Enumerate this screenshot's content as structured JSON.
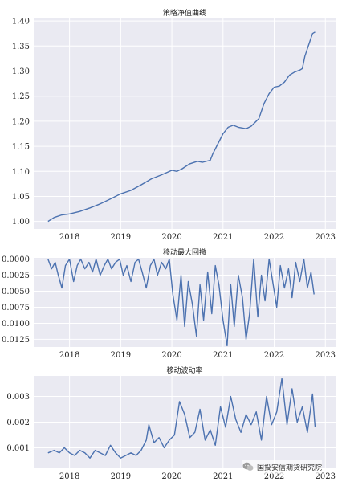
{
  "chart_data": [
    {
      "type": "line",
      "title": "策略净值曲线",
      "xlabel": "",
      "ylabel": "",
      "x_ticks": [
        "2018",
        "2019",
        "2020",
        "2021",
        "2022",
        "2023"
      ],
      "xlim": [
        2017.3,
        2023.2
      ],
      "y_ticks": [
        "1.00",
        "1.05",
        "1.10",
        "1.15",
        "1.20",
        "1.25",
        "1.30",
        "1.35",
        "1.40"
      ],
      "ylim": [
        0.985,
        1.405
      ],
      "grid": true,
      "series": [
        {
          "x": [
            2017.58,
            2017.7,
            2017.85,
            2018.0,
            2018.2,
            2018.4,
            2018.6,
            2018.8,
            2019.0,
            2019.2,
            2019.4,
            2019.6,
            2019.8,
            2020.0,
            2020.1,
            2020.2,
            2020.35,
            2020.5,
            2020.6,
            2020.75,
            2020.8,
            2020.9,
            2021.0,
            2021.1,
            2021.2,
            2021.3,
            2021.45,
            2021.55,
            2021.7,
            2021.8,
            2021.9,
            2022.0,
            2022.1,
            2022.2,
            2022.3,
            2022.4,
            2022.5,
            2022.55,
            2022.6,
            2022.7,
            2022.75,
            2022.8
          ],
          "values": [
            1.0,
            1.008,
            1.013,
            1.015,
            1.02,
            1.027,
            1.035,
            1.045,
            1.055,
            1.062,
            1.073,
            1.085,
            1.093,
            1.102,
            1.1,
            1.105,
            1.115,
            1.12,
            1.118,
            1.122,
            1.135,
            1.155,
            1.175,
            1.188,
            1.192,
            1.188,
            1.185,
            1.19,
            1.205,
            1.235,
            1.255,
            1.268,
            1.27,
            1.278,
            1.292,
            1.298,
            1.302,
            1.305,
            1.33,
            1.36,
            1.375,
            1.378
          ]
        }
      ]
    },
    {
      "type": "line",
      "title": "移动最大回撤",
      "xlabel": "",
      "ylabel": "",
      "x_ticks": [
        "2018",
        "2019",
        "2020",
        "2021",
        "2022",
        "2023"
      ],
      "xlim": [
        2017.3,
        2023.2
      ],
      "y_ticks": [
        "0.0000",
        "0.0025",
        "0.0050",
        "0.0075",
        "0.0100",
        "0.0125"
      ],
      "ylim": [
        0.0137,
        -0.0002
      ],
      "grid": true,
      "series": [
        {
          "x": [
            2017.58,
            2017.65,
            2017.72,
            2017.78,
            2017.85,
            2017.92,
            2018.0,
            2018.08,
            2018.15,
            2018.22,
            2018.3,
            2018.38,
            2018.45,
            2018.52,
            2018.6,
            2018.68,
            2018.75,
            2018.82,
            2018.9,
            2018.98,
            2019.05,
            2019.12,
            2019.2,
            2019.28,
            2019.35,
            2019.42,
            2019.5,
            2019.58,
            2019.65,
            2019.72,
            2019.8,
            2019.88,
            2019.95,
            2020.02,
            2020.1,
            2020.18,
            2020.25,
            2020.32,
            2020.4,
            2020.48,
            2020.55,
            2020.62,
            2020.7,
            2020.78,
            2020.85,
            2020.92,
            2021.0,
            2021.08,
            2021.15,
            2021.22,
            2021.3,
            2021.38,
            2021.45,
            2021.52,
            2021.6,
            2021.68,
            2021.75,
            2021.82,
            2021.9,
            2021.98,
            2022.05,
            2022.12,
            2022.2,
            2022.28,
            2022.35,
            2022.42,
            2022.5,
            2022.58,
            2022.65,
            2022.72,
            2022.78
          ],
          "values": [
            0.0,
            0.0015,
            0.0005,
            0.0025,
            0.0045,
            0.001,
            0.0,
            0.0035,
            0.001,
            0.0,
            0.0015,
            0.0005,
            0.002,
            0.0,
            0.0025,
            0.001,
            0.0,
            0.0015,
            0.0005,
            0.0,
            0.0025,
            0.001,
            0.0035,
            0.0005,
            0.0,
            0.002,
            0.0045,
            0.001,
            0.0,
            0.0025,
            0.0005,
            0.0015,
            0.0,
            0.0055,
            0.0095,
            0.0025,
            0.0105,
            0.0035,
            0.007,
            0.012,
            0.004,
            0.0095,
            0.002,
            0.0085,
            0.001,
            0.004,
            0.0095,
            0.0135,
            0.004,
            0.0105,
            0.0025,
            0.006,
            0.0125,
            0.0085,
            0.0,
            0.009,
            0.0025,
            0.0065,
            0.0,
            0.004,
            0.0075,
            0.001,
            0.0045,
            0.0015,
            0.006,
            0.0005,
            0.0035,
            0.0,
            0.0045,
            0.002,
            0.0055
          ]
        }
      ]
    },
    {
      "type": "line",
      "title": "移动波动率",
      "xlabel": "",
      "ylabel": "",
      "x_ticks": [
        "2018",
        "2019",
        "2020",
        "2021",
        "2022",
        "2023"
      ],
      "xlim": [
        2017.3,
        2023.2
      ],
      "y_ticks": [
        "0.001",
        "0.002",
        "0.003"
      ],
      "ylim": [
        0.0002,
        0.0038
      ],
      "grid": true,
      "series": [
        {
          "x": [
            2017.58,
            2017.7,
            2017.8,
            2017.9,
            2018.0,
            2018.1,
            2018.2,
            2018.3,
            2018.4,
            2018.5,
            2018.6,
            2018.7,
            2018.8,
            2018.9,
            2019.0,
            2019.1,
            2019.2,
            2019.3,
            2019.4,
            2019.5,
            2019.55,
            2019.65,
            2019.75,
            2019.85,
            2019.95,
            2020.05,
            2020.15,
            2020.25,
            2020.35,
            2020.45,
            2020.55,
            2020.65,
            2020.75,
            2020.85,
            2020.95,
            2021.05,
            2021.15,
            2021.25,
            2021.35,
            2021.45,
            2021.55,
            2021.65,
            2021.75,
            2021.85,
            2021.95,
            2022.05,
            2022.15,
            2022.25,
            2022.35,
            2022.45,
            2022.55,
            2022.65,
            2022.75,
            2022.8
          ],
          "values": [
            0.0008,
            0.0009,
            0.0008,
            0.001,
            0.0008,
            0.0007,
            0.0009,
            0.0008,
            0.0006,
            0.0009,
            0.0008,
            0.0007,
            0.0011,
            0.0008,
            0.0006,
            0.0007,
            0.0008,
            0.0007,
            0.0009,
            0.0013,
            0.0019,
            0.0012,
            0.0014,
            0.001,
            0.0013,
            0.0015,
            0.0028,
            0.0023,
            0.0014,
            0.0016,
            0.0025,
            0.0013,
            0.0017,
            0.0011,
            0.0026,
            0.0018,
            0.003,
            0.0021,
            0.0016,
            0.0023,
            0.0019,
            0.0024,
            0.0013,
            0.003,
            0.0019,
            0.0024,
            0.0037,
            0.0019,
            0.0033,
            0.002,
            0.0026,
            0.0016,
            0.0031,
            0.0018
          ]
        }
      ]
    }
  ],
  "watermark": {
    "text": "国投安信期货研究院",
    "icon": "wechat-icon"
  }
}
